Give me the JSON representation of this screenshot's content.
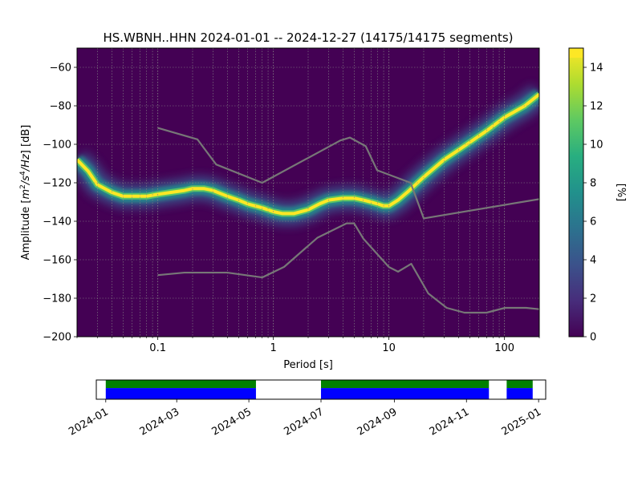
{
  "chart_data": [
    {
      "type": "heatmap",
      "title": "HS.WBNH..HHN   2024-01-01 -- 2024-12-27  (14175/14175 segments)",
      "xlabel": "Period [s]",
      "ylabel_parts": {
        "prefix": "Amplitude [",
        "m": "m",
        "m_exp": "2",
        "slash1": "/",
        "s": "s",
        "s_exp": "4",
        "slash2": "/",
        "hz": "Hz",
        "suffix": "] [dB]"
      },
      "x_scale": "log",
      "xlim": [
        0.02,
        200
      ],
      "ylim": [
        -200,
        -50
      ],
      "x_ticks": [
        {
          "value": 0.1,
          "label": "0.1"
        },
        {
          "value": 1,
          "label": "1"
        },
        {
          "value": 10,
          "label": "10"
        },
        {
          "value": 100,
          "label": "100"
        }
      ],
      "y_ticks": [
        {
          "value": -60,
          "label": "−60"
        },
        {
          "value": -80,
          "label": "−80"
        },
        {
          "value": -100,
          "label": "−100"
        },
        {
          "value": -120,
          "label": "−120"
        },
        {
          "value": -140,
          "label": "−140"
        },
        {
          "value": -160,
          "label": "−160"
        },
        {
          "value": -180,
          "label": "−180"
        },
        {
          "value": -200,
          "label": "−200"
        }
      ],
      "grid": true,
      "colormap": "viridis",
      "background_color": "#440154",
      "colorbar": {
        "label": "[%]",
        "range": [
          0,
          15
        ],
        "ticks": [
          {
            "value": 0,
            "label": "0"
          },
          {
            "value": 2,
            "label": "2"
          },
          {
            "value": 4,
            "label": "4"
          },
          {
            "value": 6,
            "label": "6"
          },
          {
            "value": 8,
            "label": "8"
          },
          {
            "value": 10,
            "label": "10"
          },
          {
            "value": 12,
            "label": "12"
          },
          {
            "value": 14,
            "label": "14"
          }
        ]
      },
      "psd_mode_curve": {
        "period": [
          0.02,
          0.025,
          0.03,
          0.04,
          0.05,
          0.06,
          0.08,
          0.1,
          0.13,
          0.17,
          0.2,
          0.25,
          0.3,
          0.4,
          0.5,
          0.6,
          0.8,
          1,
          1.2,
          1.5,
          2,
          2.5,
          3,
          4,
          5,
          6,
          7,
          8,
          9,
          10,
          12,
          15,
          20,
          30,
          40,
          50,
          70,
          100,
          150,
          200
        ],
        "db": [
          -108,
          -114,
          -121,
          -125,
          -127,
          -127,
          -127,
          -126,
          -125,
          -124,
          -123,
          -123,
          -124,
          -127,
          -129,
          -131,
          -133,
          -135,
          -136,
          -136,
          -134,
          -131,
          -129,
          -128,
          -128,
          -129,
          -130,
          -131,
          -132,
          -132,
          -129,
          -124,
          -117,
          -108,
          -103,
          -99,
          -93,
          -86,
          -80,
          -74
        ]
      },
      "noise_models": [
        {
          "name": "",
          "period": [
            0.1,
            0.17,
            0.22,
            0.4,
            0.8,
            1.24,
            2.4,
            4.3,
            5,
            6,
            10,
            12,
            15.6,
            21.9,
            31.6,
            45,
            70,
            101,
            154,
            200
          ],
          "db": [
            -168,
            -166.7,
            -166.7,
            -166.7,
            -169.2,
            -163.7,
            -148.6,
            -141.1,
            -141.1,
            -149,
            -163.8,
            -166.2,
            -162.1,
            -177.5,
            -185,
            -187.5,
            -187.5,
            -185,
            -185,
            -185.7
          ]
        },
        {
          "name": "",
          "period": [
            0.1,
            0.22,
            0.32,
            0.8,
            3.8,
            4.6,
            6.3,
            7.9,
            15.4,
            20,
            354
          ],
          "db": [
            -91.5,
            -97.4,
            -110.5,
            -120,
            -98,
            -96.5,
            -101,
            -113.5,
            -120,
            -138.5,
            -126
          ]
        }
      ]
    },
    {
      "type": "timeline",
      "x_ticks": [
        {
          "value": "2024-01-01",
          "label": "2024-01"
        },
        {
          "value": "2024-03-01",
          "label": "2024-03"
        },
        {
          "value": "2024-05-01",
          "label": "2024-05"
        },
        {
          "value": "2024-07-01",
          "label": "2024-07"
        },
        {
          "value": "2024-09-01",
          "label": "2024-09"
        },
        {
          "value": "2024-11-01",
          "label": "2024-11"
        },
        {
          "value": "2025-01-01",
          "label": "2025-01"
        }
      ],
      "xlim": [
        "2023-12-24",
        "2025-01-07"
      ],
      "data_available": [
        {
          "start": "2024-01-01",
          "end": "2024-05-07"
        },
        {
          "start": "2024-07-01",
          "end": "2024-11-20"
        },
        {
          "start": "2024-12-05",
          "end": "2024-12-27"
        }
      ],
      "colors": {
        "top": "#008000",
        "bottom": "#0000ff"
      }
    }
  ]
}
